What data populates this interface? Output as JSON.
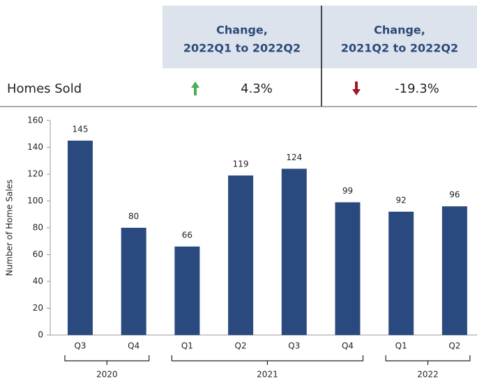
{
  "summary": {
    "headers": [
      [
        "Change,",
        "2022Q1 to 2022Q2"
      ],
      [
        "Change,",
        "2021Q2 to 2022Q2"
      ]
    ],
    "row": {
      "label": "Homes Sold",
      "values": [
        "4.3%",
        "-19.3%"
      ]
    }
  },
  "chart_data": {
    "type": "bar",
    "y_label": "Number of Home Sales",
    "categories": [
      "Q3",
      "Q4",
      "Q1",
      "Q2",
      "Q3",
      "Q4",
      "Q1",
      "Q2"
    ],
    "category_groups": [
      "2020",
      "2020",
      "2021",
      "2021",
      "2021",
      "2021",
      "2022",
      "2022"
    ],
    "values": [
      145,
      80,
      66,
      119,
      124,
      99,
      92,
      96
    ],
    "color": "#2a4a7f",
    "ylim": [
      0,
      160
    ],
    "yticks": [
      0,
      20,
      40,
      60,
      80,
      100,
      120,
      140,
      160
    ],
    "grid": false
  }
}
